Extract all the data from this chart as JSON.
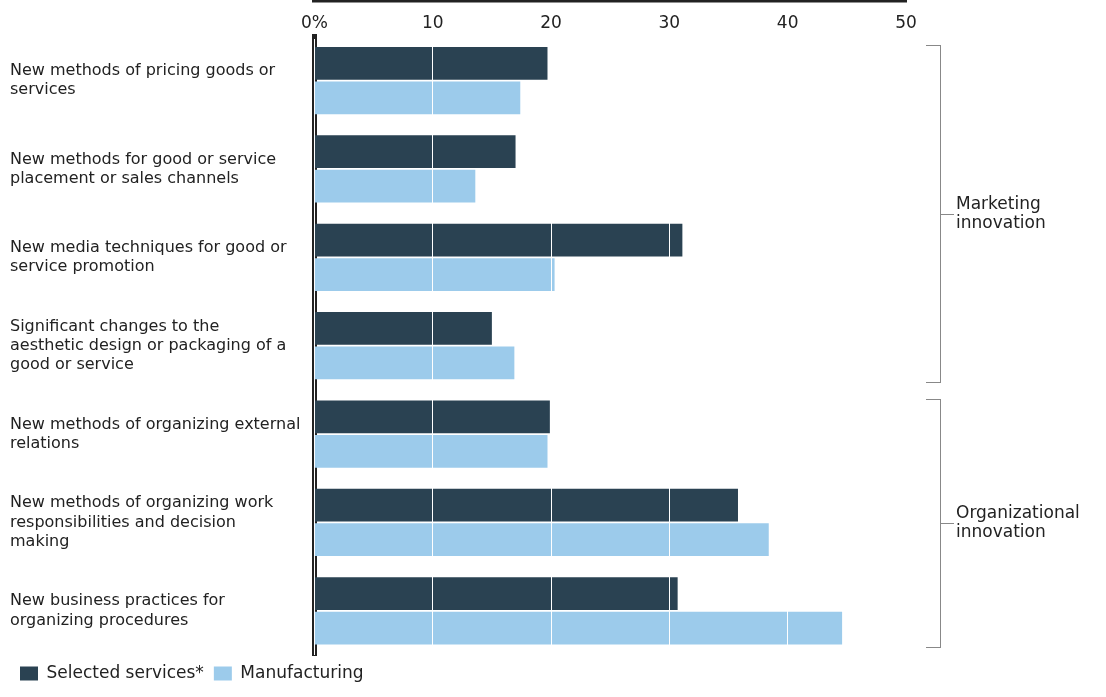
{
  "chart_data": {
    "type": "bar",
    "orientation": "horizontal",
    "categories": [
      "New methods of pricing goods or services",
      "New methods for good or service placement or sales channels",
      "New media techniques for good or service promotion",
      "Significant changes to the aesthetic design or packaging of a good or service",
      "New methods of organizing external relations",
      "New methods of organizing work responsibilities and decision making",
      "New business practices for organizing procedures"
    ],
    "series": [
      {
        "name": "Selected services*",
        "color": "#2a4252",
        "values": [
          19.7,
          17.0,
          31.1,
          15.0,
          19.9,
          35.8,
          30.7
        ]
      },
      {
        "name": "Manufacturing",
        "color": "#9ccbeb",
        "values": [
          17.4,
          13.6,
          20.3,
          16.9,
          19.7,
          38.4,
          44.6
        ]
      }
    ],
    "xlim": [
      0,
      50
    ],
    "xticks": [
      {
        "value": 0,
        "label": "0%"
      },
      10,
      20,
      30,
      40,
      50
    ],
    "grid": "x",
    "legend": "bottom left",
    "annotations": [
      "Marketing innovation",
      "Organizational innovation"
    ]
  }
}
